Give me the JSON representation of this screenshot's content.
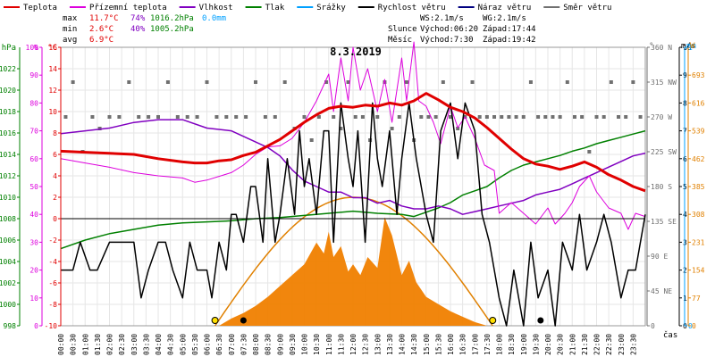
{
  "legend": [
    {
      "label": "Teplota",
      "color": "#e00000"
    },
    {
      "label": "Přízemní teplota",
      "color": "#dd00dd"
    },
    {
      "label": "Vlhkost",
      "color": "#8000c0"
    },
    {
      "label": "Tlak",
      "color": "#008000"
    },
    {
      "label": "Srážky",
      "color": "#00a0ff"
    },
    {
      "label": "Rychlost větru",
      "color": "#000000"
    },
    {
      "label": "Náraz větru",
      "color": "#000080"
    },
    {
      "label": "Směr větru",
      "color": "#707070"
    }
  ],
  "stats": {
    "max_label": "max",
    "max_temp": "11.7°C",
    "max_hum": "74%",
    "max_press": "1016.2hPa",
    "max_rain": "0.0mm",
    "min_label": "min",
    "min_temp": "2.6°C",
    "min_hum": "40%",
    "min_press": "1005.2hPa",
    "avg_label": "avg",
    "avg_temp": "6.9°C"
  },
  "wind_summary": {
    "ws": "WS:2.1m/s",
    "wg": "WG:2.1m/s"
  },
  "sun": {
    "label": "Slunce",
    "rise": "Východ:06:20",
    "set": "Západ:17:44"
  },
  "moon": {
    "label": "Měsíc",
    "rise": "Východ:7:30",
    "set": "Západ:19:42"
  },
  "time_axis_label": "čas",
  "colors": {
    "sun": "#e08000",
    "solar_fill": "#f08000",
    "grid": "#e6e6e6",
    "pink_axis": "#dd00dd",
    "green_axis": "#008000",
    "purple_axis": "#8000c0",
    "red_axis": "#e00000",
    "gray_axis": "#707070",
    "cyan_axis": "#00a0ff",
    "orange_axis": "#e08000"
  },
  "chart_data": {
    "type": "line",
    "title": "8.3.2019",
    "x_unit": "hour of day",
    "xlim": [
      0,
      24
    ],
    "x_ticks": [
      "00:00",
      "00:30",
      "01:00",
      "01:30",
      "02:00",
      "02:30",
      "03:00",
      "03:30",
      "04:00",
      "04:30",
      "05:00",
      "05:30",
      "06:00",
      "06:30",
      "07:00",
      "07:30",
      "08:00",
      "08:30",
      "09:00",
      "09:30",
      "10:00",
      "10:30",
      "11:00",
      "11:30",
      "12:00",
      "12:30",
      "13:00",
      "13:30",
      "14:00",
      "14:30",
      "15:00",
      "15:30",
      "16:00",
      "16:30",
      "17:00",
      "17:30",
      "18:00",
      "18:30",
      "19:00",
      "19:30",
      "20:00",
      "20:30",
      "21:00",
      "21:30",
      "22:00",
      "22:30",
      "23:00",
      "23:30"
    ],
    "axes": {
      "pressure": {
        "label": "hPa",
        "ticks": [
          998,
          1000,
          1002,
          1004,
          1006,
          1008,
          1010,
          1012,
          1014,
          1016,
          1018,
          1020,
          1022
        ],
        "ylim": [
          998,
          1024
        ]
      },
      "humidity": {
        "label": "%",
        "ticks": [
          0,
          10,
          20,
          30,
          40,
          50,
          60,
          70,
          80,
          90,
          100
        ],
        "ylim": [
          0,
          100
        ]
      },
      "temperature": {
        "label": "°C",
        "ticks": [
          -10,
          -8,
          -6,
          -4,
          -2,
          0,
          2,
          4,
          6,
          8,
          10,
          12,
          14,
          16
        ],
        "ylim": [
          -10,
          16
        ]
      },
      "wind_dir": {
        "label": "°",
        "ticks": [
          "0",
          "45 NE",
          "90 E",
          "135 SE",
          "180 S",
          "225 SW",
          "270 W",
          "315 NW",
          "360 N"
        ],
        "ylim": [
          0,
          360
        ]
      },
      "wind_speed": {
        "label": "m/s",
        "ticks": [
          0,
          1,
          2,
          3,
          4,
          5,
          6,
          7,
          8,
          9,
          10
        ],
        "ylim": [
          0,
          10
        ]
      },
      "rain": {
        "label": "mm",
        "ticks": [
          0,
          1
        ],
        "ylim": [
          0,
          1
        ]
      },
      "solar": {
        "label": "W",
        "ticks": [
          0,
          77,
          154,
          231,
          308,
          385,
          462,
          539,
          616,
          693
        ],
        "ylim": [
          0,
          770
        ]
      }
    },
    "series": [
      {
        "name": "Teplota",
        "axis": "temperature",
        "x": [
          0,
          1,
          2,
          3,
          4,
          5,
          5.5,
          6,
          6.5,
          7,
          7.5,
          8,
          8.5,
          9,
          9.5,
          10,
          10.5,
          11,
          11.5,
          12,
          12.5,
          13,
          13.5,
          14,
          14.5,
          15,
          15.5,
          16,
          16.5,
          17,
          17.5,
          18,
          18.5,
          19,
          19.5,
          20,
          20.5,
          21,
          21.5,
          22,
          22.5,
          23,
          23.5,
          24
        ],
        "values": [
          6.3,
          6.2,
          6.1,
          6.0,
          5.6,
          5.3,
          5.2,
          5.2,
          5.4,
          5.5,
          5.9,
          6.2,
          6.8,
          7.4,
          8.2,
          9.0,
          9.7,
          10.3,
          10.5,
          10.4,
          10.6,
          10.5,
          10.8,
          10.6,
          11.0,
          11.7,
          11.1,
          10.4,
          10.0,
          9.4,
          8.5,
          7.5,
          6.5,
          5.6,
          5.1,
          4.9,
          4.6,
          4.9,
          5.3,
          4.8,
          4.1,
          3.6,
          3.0,
          2.6
        ]
      },
      {
        "name": "Přízemní teplota",
        "axis": "temperature",
        "x": [
          0,
          1,
          2,
          3,
          4,
          5,
          5.5,
          6,
          7,
          7.5,
          8,
          8.5,
          9,
          9.5,
          10,
          10.5,
          11,
          11.2,
          11.5,
          11.8,
          12,
          12.3,
          12.6,
          13,
          13.3,
          13.6,
          14,
          14.2,
          14.5,
          14.7,
          15,
          15.3,
          15.6,
          16,
          16.3,
          16.6,
          17,
          17.4,
          17.8,
          18,
          18.5,
          19,
          19.5,
          20,
          20.3,
          20.7,
          21,
          21.3,
          21.7,
          22,
          22.5,
          23,
          23.3,
          23.6,
          24
        ],
        "values": [
          5.6,
          5.2,
          4.8,
          4.3,
          4.0,
          3.8,
          3.4,
          3.6,
          4.3,
          5.0,
          6.0,
          6.7,
          6.8,
          7.5,
          9.0,
          11.0,
          13.5,
          10.0,
          15.0,
          11.0,
          16.0,
          12.0,
          14.0,
          10.0,
          13.0,
          9.0,
          15.0,
          11.0,
          16.5,
          11.0,
          10.5,
          9.0,
          7.0,
          10.5,
          8.5,
          9.5,
          7.5,
          5.0,
          4.5,
          0.5,
          1.5,
          0.5,
          -0.5,
          1.0,
          -0.5,
          0.5,
          1.5,
          3.0,
          4.0,
          2.5,
          1.0,
          0.5,
          -1.0,
          0.5,
          0.2
        ]
      },
      {
        "name": "Vlhkost",
        "axis": "humidity",
        "x": [
          0,
          1,
          2,
          3,
          4,
          5,
          6,
          7,
          7.5,
          8,
          8.5,
          9,
          9.5,
          10,
          10.5,
          11,
          11.5,
          12,
          12.5,
          13,
          13.5,
          14,
          14.5,
          15,
          15.5,
          16,
          16.5,
          17,
          17.5,
          18,
          18.5,
          19,
          19.5,
          20,
          20.5,
          21,
          21.5,
          22,
          22.5,
          23,
          23.5,
          24
        ],
        "values": [
          69,
          70,
          71,
          73,
          74,
          74,
          71,
          70,
          68,
          66,
          64,
          61,
          56,
          52,
          50,
          48,
          48,
          46,
          46,
          44,
          45,
          43,
          42,
          42,
          43,
          42,
          40,
          41,
          42,
          43,
          44,
          45,
          47,
          48,
          49,
          51,
          53,
          55,
          57,
          59,
          61,
          62
        ]
      },
      {
        "name": "Tlak",
        "axis": "pressure",
        "x": [
          0,
          1,
          2,
          3,
          4,
          5,
          6,
          7,
          8,
          9,
          10,
          11,
          12,
          13,
          14,
          14.5,
          15,
          15.5,
          16,
          16.5,
          17,
          17.5,
          18,
          18.5,
          19,
          19.5,
          20,
          20.5,
          21,
          21.5,
          22,
          22.5,
          23,
          23.5,
          24
        ],
        "values": [
          1005.2,
          1006.0,
          1006.6,
          1007.0,
          1007.4,
          1007.6,
          1007.7,
          1007.8,
          1008.0,
          1008.1,
          1008.3,
          1008.5,
          1008.7,
          1008.5,
          1008.4,
          1008.2,
          1008.6,
          1009.0,
          1009.5,
          1010.2,
          1010.6,
          1011.0,
          1011.8,
          1012.5,
          1013.0,
          1013.3,
          1013.6,
          1013.9,
          1014.3,
          1014.6,
          1015.0,
          1015.3,
          1015.6,
          1015.9,
          1016.2
        ]
      },
      {
        "name": "Rychlost větru",
        "axis": "wind_speed",
        "x": [
          0,
          0.5,
          0.8,
          1.2,
          1.5,
          2,
          2.5,
          3,
          3.3,
          3.6,
          4,
          4.3,
          4.6,
          5,
          5.3,
          5.6,
          6,
          6.2,
          6.5,
          6.8,
          7,
          7.2,
          7.5,
          7.8,
          8,
          8.3,
          8.5,
          8.8,
          9,
          9.3,
          9.6,
          9.8,
          10,
          10.2,
          10.5,
          10.8,
          11,
          11.2,
          11.5,
          11.8,
          12,
          12.2,
          12.5,
          12.8,
          13,
          13.2,
          13.5,
          13.8,
          14,
          14.3,
          14.6,
          15,
          15.3,
          15.6,
          16,
          16.3,
          16.6,
          17,
          17.3,
          17.6,
          18,
          18.3,
          18.6,
          19,
          19.3,
          19.6,
          20,
          20.3,
          20.6,
          21,
          21.3,
          21.6,
          22,
          22.3,
          22.6,
          23,
          23.3,
          23.6,
          24
        ],
        "values": [
          2,
          2,
          3,
          2,
          2,
          3,
          3,
          3,
          1,
          2,
          3,
          3,
          2,
          1,
          3,
          2,
          2,
          1,
          3,
          2,
          4,
          4,
          3,
          5,
          5,
          3,
          6,
          3,
          4,
          6,
          4,
          7,
          5,
          6,
          4,
          7,
          7,
          3,
          8,
          6,
          5,
          7,
          3,
          8,
          6,
          5,
          7,
          4,
          6,
          8,
          6,
          4,
          3,
          7,
          8,
          6,
          8,
          7,
          4,
          3,
          1,
          0,
          2,
          0,
          3,
          1,
          2,
          0,
          3,
          2,
          4,
          2,
          3,
          4,
          3,
          1,
          2,
          2,
          4
        ]
      },
      {
        "name": "Směr větru",
        "axis": "wind_dir",
        "x": [
          0.2,
          0.5,
          0.9,
          1.3,
          1.6,
          2,
          2.4,
          2.8,
          3.2,
          3.6,
          4,
          4.4,
          4.8,
          5.2,
          5.6,
          6,
          6.4,
          6.8,
          7.2,
          7.6,
          8,
          8.4,
          8.8,
          9.2,
          9.6,
          10,
          10.3,
          10.6,
          10.9,
          11.2,
          11.5,
          11.8,
          12.1,
          12.4,
          12.7,
          13,
          13.3,
          13.6,
          13.9,
          14.2,
          14.5,
          14.8,
          15.1,
          15.4,
          15.7,
          16,
          16.3,
          16.6,
          16.9,
          17.2,
          17.5,
          17.8,
          18.1,
          18.4,
          18.7,
          19,
          19.3,
          19.6,
          19.9,
          20.2,
          20.5,
          20.8,
          21.1,
          21.4,
          21.7,
          22,
          22.3,
          22.6,
          22.9,
          23.2,
          23.5,
          23.8
        ],
        "values": [
          270,
          315,
          225,
          270,
          255,
          270,
          270,
          315,
          270,
          270,
          270,
          315,
          270,
          270,
          270,
          315,
          270,
          270,
          270,
          270,
          315,
          270,
          270,
          315,
          255,
          270,
          240,
          270,
          315,
          270,
          255,
          315,
          270,
          270,
          240,
          270,
          315,
          255,
          270,
          315,
          240,
          270,
          270,
          270,
          315,
          270,
          255,
          270,
          315,
          270,
          270,
          270,
          270,
          270,
          270,
          270,
          315,
          270,
          270,
          270,
          270,
          315,
          270,
          270,
          225,
          270,
          270,
          315,
          270,
          270,
          315,
          270
        ]
      },
      {
        "name": "Solar",
        "axis": "solar",
        "x": [
          6.5,
          7,
          7.5,
          8,
          8.5,
          9,
          9.5,
          10,
          10.5,
          10.8,
          11,
          11.2,
          11.5,
          11.8,
          12,
          12.3,
          12.6,
          13,
          13.3,
          13.6,
          14,
          14.3,
          14.6,
          15,
          15.5,
          16,
          16.5,
          17,
          17.5
        ],
        "values": [
          0,
          20,
          35,
          55,
          80,
          110,
          140,
          170,
          230,
          200,
          260,
          190,
          220,
          150,
          170,
          140,
          190,
          160,
          300,
          250,
          140,
          180,
          120,
          80,
          60,
          40,
          25,
          10,
          0
        ]
      }
    ]
  }
}
